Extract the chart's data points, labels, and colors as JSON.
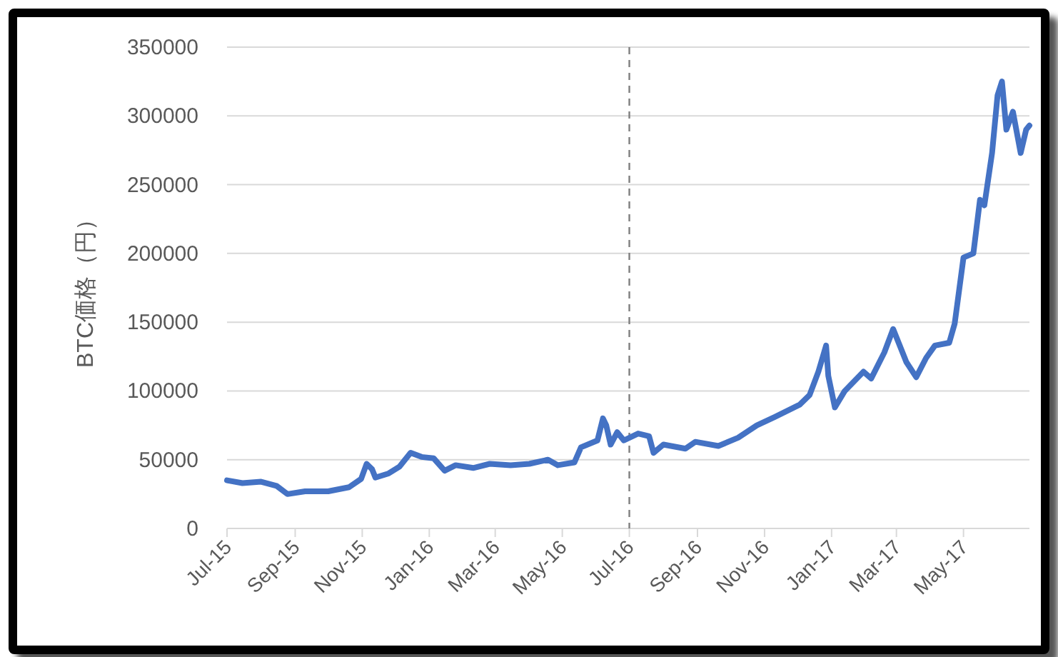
{
  "chart_data": {
    "type": "line",
    "ylabel": "BTC価格（円）",
    "x": [
      "2015-07-01",
      "2015-07-15",
      "2015-08-01",
      "2015-08-15",
      "2015-08-25",
      "2015-09-10",
      "2015-10-01",
      "2015-10-20",
      "2015-10-31",
      "2015-11-05",
      "2015-11-10",
      "2015-11-13",
      "2015-11-25",
      "2015-12-05",
      "2015-12-15",
      "2015-12-25",
      "2016-01-05",
      "2016-01-15",
      "2016-01-25",
      "2016-02-10",
      "2016-02-25",
      "2016-03-15",
      "2016-04-01",
      "2016-04-18",
      "2016-04-27",
      "2016-05-12",
      "2016-05-18",
      "2016-06-02",
      "2016-06-07",
      "2016-06-10",
      "2016-06-14",
      "2016-06-20",
      "2016-06-26",
      "2016-07-09",
      "2016-07-19",
      "2016-07-23",
      "2016-08-01",
      "2016-08-21",
      "2016-08-30",
      "2016-09-20",
      "2016-10-08",
      "2016-10-25",
      "2016-11-10",
      "2016-12-03",
      "2016-12-12",
      "2016-12-20",
      "2016-12-27",
      "2016-12-29",
      "2017-01-04",
      "2017-01-13",
      "2017-01-30",
      "2017-02-06",
      "2017-02-18",
      "2017-02-26",
      "2017-03-03",
      "2017-03-10",
      "2017-03-19",
      "2017-03-28",
      "2017-04-05",
      "2017-04-18",
      "2017-04-23",
      "2017-05-01",
      "2017-05-10",
      "2017-05-16",
      "2017-05-20",
      "2017-05-27",
      "2017-06-01",
      "2017-06-05",
      "2017-06-09",
      "2017-06-15",
      "2017-06-22",
      "2017-06-27",
      "2017-06-30"
    ],
    "series": [
      {
        "color": "#4472c4",
        "values": [
          35000,
          33000,
          34000,
          31000,
          25000,
          27000,
          27000,
          30000,
          36000,
          47000,
          43000,
          37000,
          40000,
          45000,
          55000,
          52000,
          51000,
          42000,
          46000,
          44000,
          47000,
          46000,
          47000,
          50000,
          46000,
          48000,
          59000,
          64000,
          80000,
          75000,
          61000,
          70000,
          64000,
          69000,
          67000,
          55000,
          61000,
          58000,
          63000,
          60000,
          66000,
          75000,
          81000,
          90000,
          97000,
          114000,
          133000,
          111000,
          88000,
          100000,
          114000,
          109000,
          128000,
          145000,
          135000,
          121000,
          110000,
          124000,
          133000,
          135000,
          149000,
          197000,
          200000,
          239000,
          235000,
          273000,
          315000,
          325000,
          290000,
          303000,
          273000,
          290000,
          293000
        ]
      }
    ],
    "xlim": [
      "2015-07-01",
      "2017-06-30"
    ],
    "xticks": [
      {
        "value": "2015-07-01",
        "label": "Jul-15"
      },
      {
        "value": "2015-09-01",
        "label": "Sep-15"
      },
      {
        "value": "2015-11-01",
        "label": "Nov-15"
      },
      {
        "value": "2016-01-01",
        "label": "Jan-16"
      },
      {
        "value": "2016-03-01",
        "label": "Mar-16"
      },
      {
        "value": "2016-05-01",
        "label": "May-16"
      },
      {
        "value": "2016-07-01",
        "label": "Jul-16"
      },
      {
        "value": "2016-09-01",
        "label": "Sep-16"
      },
      {
        "value": "2016-11-01",
        "label": "Nov-16"
      },
      {
        "value": "2017-01-01",
        "label": "Jan-17"
      },
      {
        "value": "2017-03-01",
        "label": "Mar-17"
      },
      {
        "value": "2017-05-01",
        "label": "May-17"
      }
    ],
    "ylim": [
      0,
      350000
    ],
    "yticks": [
      0,
      50000,
      100000,
      150000,
      200000,
      250000,
      300000,
      350000
    ],
    "grid": "y",
    "marker": "none",
    "line_style": "solid",
    "ref_lines": [
      {
        "axis": "x",
        "value": "2016-07-01",
        "color": "#7f7f7f",
        "line_style": "dashed"
      }
    ]
  }
}
